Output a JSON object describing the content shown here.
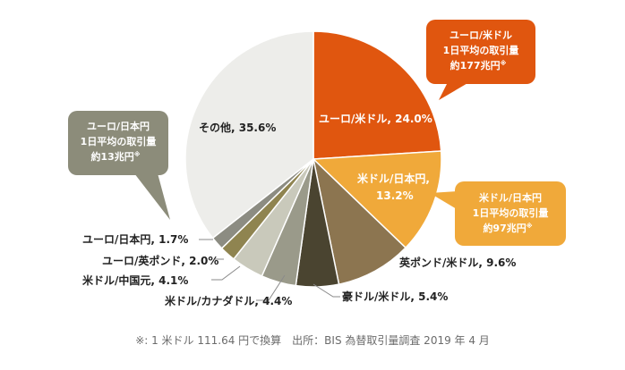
{
  "chart_data": {
    "type": "pie",
    "slices": [
      {
        "label": "ユーロ/米ドル",
        "value": 24.0,
        "color": "#e0560f"
      },
      {
        "label": "米ドル/日本円",
        "value": 13.2,
        "color": "#f0a93a"
      },
      {
        "label": "英ポンド/米ドル",
        "value": 9.6,
        "color": "#8c7550"
      },
      {
        "label": "豪ドル/米ドル",
        "value": 5.4,
        "color": "#4a4430"
      },
      {
        "label": "米ドル/カナダドル",
        "value": 4.4,
        "color": "#9a9a8a"
      },
      {
        "label": "米ドル/中国元",
        "value": 4.1,
        "color": "#c9c9bb"
      },
      {
        "label": "ユーロ/英ポンド",
        "value": 2.0,
        "color": "#8f8450"
      },
      {
        "label": "ユーロ/日本円",
        "value": 1.7,
        "color": "#8c8c82"
      },
      {
        "label": "その他",
        "value": 35.6,
        "color": "#ededea"
      }
    ],
    "labels": {
      "eurusd": "ユーロ/米ドル, 24.0%",
      "usdjpy_1": "米ドル/日本円,",
      "usdjpy_2": "13.2%",
      "gbpusd": "英ポンド/米ドル, 9.6%",
      "audusd": "豪ドル/米ドル, 5.4%",
      "usdcad": "米ドル/カナダドル, 4.4%",
      "usdcny": "米ドル/中国元, 4.1%",
      "eurgbp": "ユーロ/英ポンド, 2.0%",
      "eurjpy": "ユーロ/日本円, 1.7%",
      "other": "その他, 35.6%"
    },
    "callouts": {
      "eurusd": {
        "lines": [
          "ユーロ/米ドル",
          "1日平均の取引量",
          "約177兆円"
        ],
        "sup": "※",
        "color": "#e0560f"
      },
      "usdjpy": {
        "lines": [
          "米ドル/日本円",
          "1日平均の取引量",
          "約97兆円"
        ],
        "sup": "※",
        "color": "#f0a93a"
      },
      "eurjpy": {
        "lines": [
          "ユーロ/日本円",
          "1日平均の取引量",
          "約13兆円"
        ],
        "sup": "※",
        "color": "#8c8c7a"
      }
    }
  },
  "footnote": "※: 1 米ドル 111.64 円で換算　出所：BIS 為替取引量調査 2019 年 4 月"
}
